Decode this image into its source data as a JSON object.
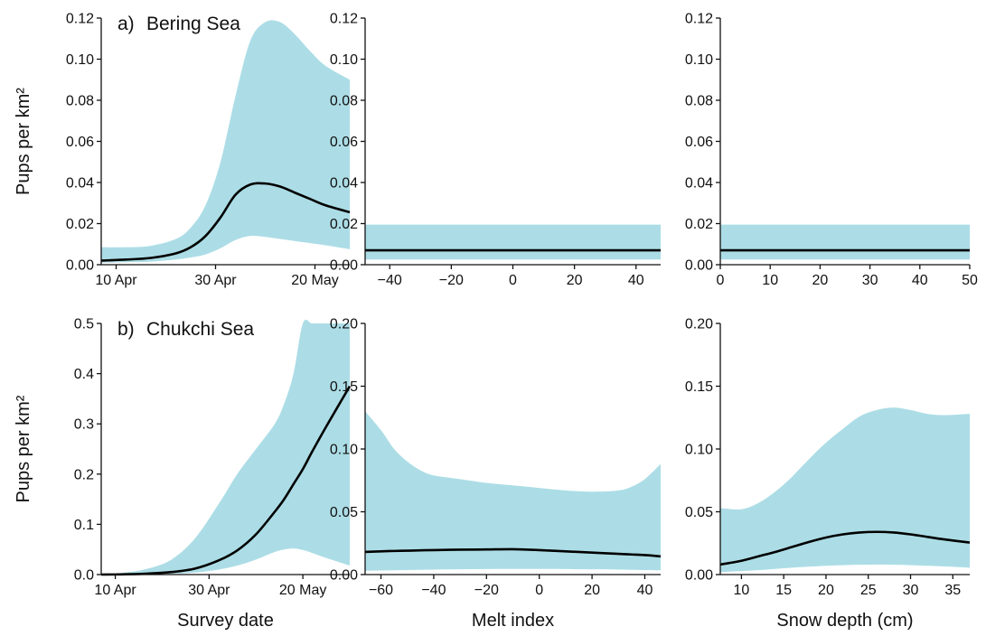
{
  "colors": {
    "band": "#acdde6",
    "line": "#000000",
    "axis": "#111111"
  },
  "chart_data": [
    {
      "type": "area",
      "panel_label": "a)",
      "title": "Bering Sea",
      "xlabel": "",
      "ylabel": "Pups per km²",
      "x_kind": "date",
      "xlim": [
        "2011-04-07",
        "2011-05-27"
      ],
      "xticks": [
        "2011-04-10",
        "2011-04-30",
        "2011-05-20"
      ],
      "xtick_labels": [
        "10 Apr",
        "30 Apr",
        "20 May"
      ],
      "ylim": [
        0,
        0.12
      ],
      "yticks": [
        0,
        0.02,
        0.04,
        0.06,
        0.08,
        0.1,
        0.12
      ],
      "ytick_labels": [
        "0.00",
        "0.02",
        "0.04",
        "0.06",
        "0.08",
        "0.10",
        "0.12"
      ],
      "x": [
        "2011-04-07",
        "2011-04-12",
        "2011-04-17",
        "2011-04-22",
        "2011-04-25",
        "2011-04-28",
        "2011-05-01",
        "2011-05-04",
        "2011-05-07",
        "2011-05-10",
        "2011-05-13",
        "2011-05-16",
        "2011-05-19",
        "2011-05-22",
        "2011-05-27"
      ],
      "lower": [
        0.001,
        0.0012,
        0.0015,
        0.0025,
        0.0035,
        0.005,
        0.008,
        0.012,
        0.014,
        0.0135,
        0.0125,
        0.0115,
        0.0105,
        0.0095,
        0.0075
      ],
      "estimate": [
        0.002,
        0.0025,
        0.0033,
        0.0055,
        0.0085,
        0.014,
        0.023,
        0.034,
        0.039,
        0.0395,
        0.038,
        0.035,
        0.032,
        0.029,
        0.0255
      ],
      "upper": [
        0.0085,
        0.0085,
        0.0092,
        0.0125,
        0.018,
        0.029,
        0.05,
        0.082,
        0.109,
        0.118,
        0.118,
        0.112,
        0.104,
        0.097,
        0.09
      ]
    },
    {
      "type": "area",
      "title": "",
      "xlabel": "",
      "ylabel": "",
      "xlim": [
        -48,
        48
      ],
      "xticks": [
        -40,
        -20,
        0,
        20,
        40
      ],
      "xtick_labels": [
        "−40",
        "−20",
        "0",
        "20",
        "40"
      ],
      "ylim": [
        0,
        0.12
      ],
      "yticks": [
        0,
        0.02,
        0.04,
        0.06,
        0.08,
        0.1,
        0.12
      ],
      "ytick_labels": [
        "0.00",
        "0.02",
        "0.04",
        "0.06",
        "0.08",
        "0.10",
        "0.12"
      ],
      "x": [
        -48,
        48
      ],
      "lower": [
        0.0025,
        0.0025
      ],
      "estimate": [
        0.007,
        0.007
      ],
      "upper": [
        0.0195,
        0.0195
      ]
    },
    {
      "type": "area",
      "title": "",
      "xlabel": "",
      "ylabel": "",
      "xlim": [
        0,
        50
      ],
      "xticks": [
        0,
        10,
        20,
        30,
        40,
        50
      ],
      "xtick_labels": [
        "0",
        "10",
        "20",
        "30",
        "40",
        "50"
      ],
      "ylim": [
        0,
        0.12
      ],
      "yticks": [
        0,
        0.02,
        0.04,
        0.06,
        0.08,
        0.1,
        0.12
      ],
      "ytick_labels": [
        "0.00",
        "0.02",
        "0.04",
        "0.06",
        "0.08",
        "0.10",
        "0.12"
      ],
      "x": [
        0,
        50
      ],
      "lower": [
        0.0025,
        0.0025
      ],
      "estimate": [
        0.007,
        0.007
      ],
      "upper": [
        0.0195,
        0.0195
      ]
    },
    {
      "type": "area",
      "panel_label": "b)",
      "title": "Chukchi Sea",
      "xlabel": "Survey date",
      "ylabel": "Pups per km²",
      "x_kind": "date",
      "xlim": [
        "2011-04-07",
        "2011-05-30"
      ],
      "xticks": [
        "2011-04-10",
        "2011-04-30",
        "2011-05-20"
      ],
      "xtick_labels": [
        "10 Apr",
        "30 Apr",
        "20 May"
      ],
      "ylim": [
        0,
        0.5
      ],
      "yticks": [
        0,
        0.1,
        0.2,
        0.3,
        0.4,
        0.5
      ],
      "ytick_labels": [
        "0.0",
        "0.1",
        "0.2",
        "0.3",
        "0.4",
        "0.5"
      ],
      "x": [
        "2011-04-07",
        "2011-04-12",
        "2011-04-17",
        "2011-04-22",
        "2011-04-27",
        "2011-05-02",
        "2011-05-06",
        "2011-05-10",
        "2011-05-14",
        "2011-05-16",
        "2011-05-18",
        "2011-05-20",
        "2011-05-22",
        "2011-05-25",
        "2011-05-30"
      ],
      "lower": [
        0,
        0,
        0.0003,
        0.0015,
        0.004,
        0.01,
        0.018,
        0.03,
        0.045,
        0.05,
        0.052,
        0.049,
        0.043,
        0.033,
        0.018
      ],
      "estimate": [
        0,
        0.0005,
        0.002,
        0.005,
        0.012,
        0.028,
        0.048,
        0.08,
        0.125,
        0.15,
        0.18,
        0.21,
        0.245,
        0.295,
        0.375
      ],
      "upper": [
        0,
        0.004,
        0.012,
        0.03,
        0.072,
        0.14,
        0.2,
        0.25,
        0.3,
        0.34,
        0.4,
        0.5,
        0.5,
        0.5,
        0.5
      ]
    },
    {
      "type": "area",
      "title": "",
      "xlabel": "Melt index",
      "ylabel": "",
      "xlim": [
        -66,
        46
      ],
      "xticks": [
        -60,
        -40,
        -20,
        0,
        20,
        40
      ],
      "xtick_labels": [
        "−60",
        "−40",
        "−20",
        "0",
        "20",
        "40"
      ],
      "ylim": [
        0,
        0.2
      ],
      "yticks": [
        0,
        0.05,
        0.1,
        0.15,
        0.2
      ],
      "ytick_labels": [
        "0.00",
        "0.05",
        "0.10",
        "0.15",
        "0.20"
      ],
      "x": [
        -66,
        -60,
        -55,
        -50,
        -45,
        -40,
        -30,
        -20,
        -10,
        0,
        10,
        20,
        30,
        35,
        40,
        46
      ],
      "lower": [
        0.003,
        0.0032,
        0.0034,
        0.0036,
        0.0038,
        0.004,
        0.0042,
        0.0044,
        0.0045,
        0.0045,
        0.0044,
        0.0042,
        0.004,
        0.0038,
        0.0036,
        0.0034
      ],
      "estimate": [
        0.018,
        0.0185,
        0.0188,
        0.019,
        0.0193,
        0.0195,
        0.0198,
        0.02,
        0.0202,
        0.0195,
        0.0185,
        0.0175,
        0.0165,
        0.016,
        0.0155,
        0.0145
      ],
      "upper": [
        0.13,
        0.115,
        0.1,
        0.09,
        0.083,
        0.079,
        0.076,
        0.073,
        0.071,
        0.069,
        0.067,
        0.066,
        0.067,
        0.07,
        0.076,
        0.088
      ]
    },
    {
      "type": "area",
      "title": "",
      "xlabel": "Snow depth (cm)",
      "ylabel": "",
      "xlim": [
        7.5,
        37
      ],
      "xticks": [
        10,
        15,
        20,
        25,
        30,
        35
      ],
      "xtick_labels": [
        "10",
        "15",
        "20",
        "25",
        "30",
        "35"
      ],
      "ylim": [
        0,
        0.2
      ],
      "yticks": [
        0,
        0.05,
        0.1,
        0.15,
        0.2
      ],
      "ytick_labels": [
        "0.00",
        "0.05",
        "0.10",
        "0.15",
        "0.20"
      ],
      "x": [
        7.5,
        10,
        12,
        14,
        16,
        18,
        20,
        22,
        24,
        26,
        28,
        30,
        32,
        34,
        37
      ],
      "lower": [
        0.002,
        0.0028,
        0.0035,
        0.0045,
        0.0055,
        0.0063,
        0.007,
        0.0075,
        0.0078,
        0.008,
        0.0078,
        0.0075,
        0.007,
        0.0065,
        0.0055
      ],
      "estimate": [
        0.008,
        0.011,
        0.0145,
        0.018,
        0.022,
        0.026,
        0.0295,
        0.032,
        0.0335,
        0.034,
        0.0335,
        0.032,
        0.03,
        0.028,
        0.0255
      ],
      "upper": [
        0.053,
        0.052,
        0.057,
        0.066,
        0.078,
        0.092,
        0.105,
        0.116,
        0.126,
        0.131,
        0.133,
        0.131,
        0.128,
        0.127,
        0.128
      ]
    }
  ]
}
